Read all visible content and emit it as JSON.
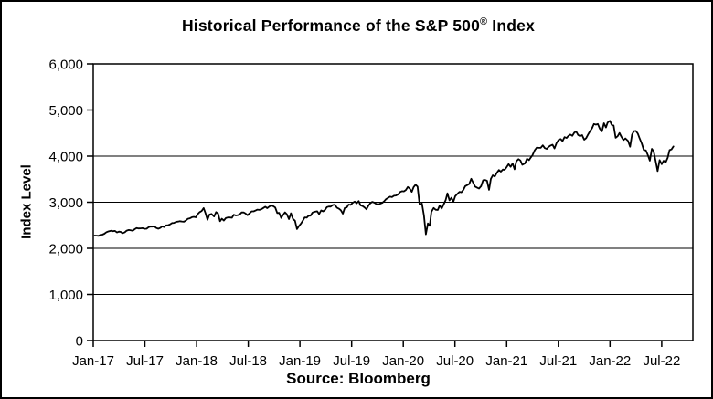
{
  "header": {
    "title_main": "Historical Performance of the S&P 500",
    "title_reg": "®",
    "title_tail": " Index"
  },
  "footer": {
    "source": "Source: Bloomberg"
  },
  "chart_data": {
    "type": "line",
    "title": "Historical Performance of the S&P 500® Index",
    "ylabel": "Index Level",
    "xlabel": "",
    "source": "Source: Bloomberg",
    "series_name": "S&P 500 Index Level",
    "line_color": "#000000",
    "grid": "horizontal-only",
    "legend": "none",
    "ylim": [
      0,
      6000
    ],
    "ytick_step": 1000,
    "ytick_labels": [
      "0",
      "1,000",
      "2,000",
      "3,000",
      "4,000",
      "5,000",
      "6,000"
    ],
    "xtick_labels": [
      "Jan-17",
      "Jul-17",
      "Jan-18",
      "Jul-18",
      "Jan-19",
      "Jul-19",
      "Jan-20",
      "Jul-20",
      "Jan-21",
      "Jul-21",
      "Jan-22",
      "Jul-22"
    ],
    "xtick_interval_months": 6,
    "xlim": [
      "2017-01-01",
      "2022-10-20"
    ],
    "points": [
      [
        "2017-01-06",
        2277
      ],
      [
        "2017-01-13",
        2275
      ],
      [
        "2017-01-20",
        2271
      ],
      [
        "2017-01-27",
        2295
      ],
      [
        "2017-02-03",
        2297
      ],
      [
        "2017-02-10",
        2316
      ],
      [
        "2017-02-17",
        2351
      ],
      [
        "2017-02-24",
        2367
      ],
      [
        "2017-03-03",
        2383
      ],
      [
        "2017-03-10",
        2373
      ],
      [
        "2017-03-17",
        2378
      ],
      [
        "2017-03-24",
        2344
      ],
      [
        "2017-03-31",
        2363
      ],
      [
        "2017-04-07",
        2356
      ],
      [
        "2017-04-13",
        2329
      ],
      [
        "2017-04-21",
        2349
      ],
      [
        "2017-04-28",
        2384
      ],
      [
        "2017-05-05",
        2399
      ],
      [
        "2017-05-12",
        2391
      ],
      [
        "2017-05-19",
        2382
      ],
      [
        "2017-05-26",
        2416
      ],
      [
        "2017-06-02",
        2439
      ],
      [
        "2017-06-09",
        2432
      ],
      [
        "2017-06-16",
        2433
      ],
      [
        "2017-06-23",
        2438
      ],
      [
        "2017-06-30",
        2423
      ],
      [
        "2017-07-07",
        2425
      ],
      [
        "2017-07-14",
        2459
      ],
      [
        "2017-07-21",
        2473
      ],
      [
        "2017-07-28",
        2472
      ],
      [
        "2017-08-04",
        2477
      ],
      [
        "2017-08-11",
        2441
      ],
      [
        "2017-08-18",
        2426
      ],
      [
        "2017-08-25",
        2443
      ],
      [
        "2017-09-01",
        2477
      ],
      [
        "2017-09-08",
        2461
      ],
      [
        "2017-09-15",
        2500
      ],
      [
        "2017-09-22",
        2502
      ],
      [
        "2017-09-29",
        2519
      ],
      [
        "2017-10-06",
        2549
      ],
      [
        "2017-10-13",
        2553
      ],
      [
        "2017-10-20",
        2575
      ],
      [
        "2017-10-27",
        2581
      ],
      [
        "2017-11-03",
        2588
      ],
      [
        "2017-11-10",
        2582
      ],
      [
        "2017-11-17",
        2579
      ],
      [
        "2017-11-24",
        2602
      ],
      [
        "2017-12-01",
        2642
      ],
      [
        "2017-12-08",
        2652
      ],
      [
        "2017-12-15",
        2676
      ],
      [
        "2017-12-22",
        2683
      ],
      [
        "2017-12-29",
        2674
      ],
      [
        "2018-01-05",
        2743
      ],
      [
        "2018-01-12",
        2786
      ],
      [
        "2018-01-19",
        2810
      ],
      [
        "2018-01-26",
        2873
      ],
      [
        "2018-02-02",
        2762
      ],
      [
        "2018-02-09",
        2620
      ],
      [
        "2018-02-16",
        2732
      ],
      [
        "2018-02-23",
        2747
      ],
      [
        "2018-03-02",
        2691
      ],
      [
        "2018-03-09",
        2787
      ],
      [
        "2018-03-16",
        2752
      ],
      [
        "2018-03-23",
        2588
      ],
      [
        "2018-03-29",
        2641
      ],
      [
        "2018-04-06",
        2604
      ],
      [
        "2018-04-13",
        2656
      ],
      [
        "2018-04-20",
        2670
      ],
      [
        "2018-04-27",
        2670
      ],
      [
        "2018-05-04",
        2663
      ],
      [
        "2018-05-11",
        2728
      ],
      [
        "2018-05-18",
        2713
      ],
      [
        "2018-05-25",
        2721
      ],
      [
        "2018-06-01",
        2735
      ],
      [
        "2018-06-08",
        2779
      ],
      [
        "2018-06-15",
        2780
      ],
      [
        "2018-06-22",
        2755
      ],
      [
        "2018-06-29",
        2718
      ],
      [
        "2018-07-06",
        2760
      ],
      [
        "2018-07-13",
        2801
      ],
      [
        "2018-07-20",
        2802
      ],
      [
        "2018-07-27",
        2819
      ],
      [
        "2018-08-03",
        2840
      ],
      [
        "2018-08-10",
        2833
      ],
      [
        "2018-08-17",
        2850
      ],
      [
        "2018-08-24",
        2875
      ],
      [
        "2018-08-31",
        2902
      ],
      [
        "2018-09-07",
        2872
      ],
      [
        "2018-09-14",
        2905
      ],
      [
        "2018-09-21",
        2930
      ],
      [
        "2018-09-28",
        2914
      ],
      [
        "2018-10-05",
        2886
      ],
      [
        "2018-10-12",
        2767
      ],
      [
        "2018-10-19",
        2768
      ],
      [
        "2018-10-26",
        2659
      ],
      [
        "2018-11-02",
        2723
      ],
      [
        "2018-11-09",
        2781
      ],
      [
        "2018-11-16",
        2736
      ],
      [
        "2018-11-23",
        2633
      ],
      [
        "2018-11-30",
        2760
      ],
      [
        "2018-12-07",
        2633
      ],
      [
        "2018-12-14",
        2600
      ],
      [
        "2018-12-21",
        2417
      ],
      [
        "2018-12-28",
        2486
      ],
      [
        "2019-01-04",
        2532
      ],
      [
        "2019-01-11",
        2596
      ],
      [
        "2019-01-18",
        2671
      ],
      [
        "2019-01-25",
        2665
      ],
      [
        "2019-02-01",
        2707
      ],
      [
        "2019-02-08",
        2708
      ],
      [
        "2019-02-15",
        2776
      ],
      [
        "2019-02-22",
        2793
      ],
      [
        "2019-03-01",
        2803
      ],
      [
        "2019-03-08",
        2743
      ],
      [
        "2019-03-15",
        2822
      ],
      [
        "2019-03-22",
        2801
      ],
      [
        "2019-03-29",
        2834
      ],
      [
        "2019-04-05",
        2893
      ],
      [
        "2019-04-12",
        2907
      ],
      [
        "2019-04-18",
        2905
      ],
      [
        "2019-04-26",
        2940
      ],
      [
        "2019-05-03",
        2946
      ],
      [
        "2019-05-10",
        2881
      ],
      [
        "2019-05-17",
        2860
      ],
      [
        "2019-05-24",
        2826
      ],
      [
        "2019-05-31",
        2752
      ],
      [
        "2019-06-07",
        2873
      ],
      [
        "2019-06-14",
        2887
      ],
      [
        "2019-06-21",
        2950
      ],
      [
        "2019-06-28",
        2942
      ],
      [
        "2019-07-05",
        2990
      ],
      [
        "2019-07-12",
        3014
      ],
      [
        "2019-07-19",
        2977
      ],
      [
        "2019-07-26",
        3026
      ],
      [
        "2019-08-02",
        2932
      ],
      [
        "2019-08-09",
        2919
      ],
      [
        "2019-08-16",
        2889
      ],
      [
        "2019-08-23",
        2847
      ],
      [
        "2019-08-30",
        2926
      ],
      [
        "2019-09-06",
        2979
      ],
      [
        "2019-09-13",
        3007
      ],
      [
        "2019-09-20",
        2992
      ],
      [
        "2019-09-27",
        2962
      ],
      [
        "2019-10-04",
        2952
      ],
      [
        "2019-10-11",
        2970
      ],
      [
        "2019-10-18",
        2986
      ],
      [
        "2019-10-25",
        3023
      ],
      [
        "2019-11-01",
        3067
      ],
      [
        "2019-11-08",
        3093
      ],
      [
        "2019-11-15",
        3120
      ],
      [
        "2019-11-22",
        3110
      ],
      [
        "2019-11-29",
        3141
      ],
      [
        "2019-12-06",
        3146
      ],
      [
        "2019-12-13",
        3169
      ],
      [
        "2019-12-20",
        3221
      ],
      [
        "2019-12-27",
        3240
      ],
      [
        "2020-01-03",
        3235
      ],
      [
        "2020-01-10",
        3265
      ],
      [
        "2020-01-17",
        3330
      ],
      [
        "2020-01-24",
        3295
      ],
      [
        "2020-01-31",
        3226
      ],
      [
        "2020-02-07",
        3328
      ],
      [
        "2020-02-14",
        3380
      ],
      [
        "2020-02-21",
        3338
      ],
      [
        "2020-02-28",
        2954
      ],
      [
        "2020-03-06",
        2972
      ],
      [
        "2020-03-13",
        2711
      ],
      [
        "2020-03-20",
        2305
      ],
      [
        "2020-03-27",
        2541
      ],
      [
        "2020-04-03",
        2489
      ],
      [
        "2020-04-09",
        2790
      ],
      [
        "2020-04-17",
        2875
      ],
      [
        "2020-04-24",
        2837
      ],
      [
        "2020-05-01",
        2831
      ],
      [
        "2020-05-08",
        2930
      ],
      [
        "2020-05-15",
        2864
      ],
      [
        "2020-05-22",
        2955
      ],
      [
        "2020-05-29",
        3044
      ],
      [
        "2020-06-05",
        3194
      ],
      [
        "2020-06-12",
        3041
      ],
      [
        "2020-06-19",
        3098
      ],
      [
        "2020-06-26",
        3009
      ],
      [
        "2020-07-02",
        3130
      ],
      [
        "2020-07-10",
        3185
      ],
      [
        "2020-07-17",
        3225
      ],
      [
        "2020-07-24",
        3216
      ],
      [
        "2020-07-31",
        3271
      ],
      [
        "2020-08-07",
        3351
      ],
      [
        "2020-08-14",
        3373
      ],
      [
        "2020-08-21",
        3397
      ],
      [
        "2020-08-28",
        3508
      ],
      [
        "2020-09-04",
        3427
      ],
      [
        "2020-09-11",
        3341
      ],
      [
        "2020-09-18",
        3319
      ],
      [
        "2020-09-25",
        3298
      ],
      [
        "2020-10-02",
        3348
      ],
      [
        "2020-10-09",
        3477
      ],
      [
        "2020-10-16",
        3484
      ],
      [
        "2020-10-23",
        3465
      ],
      [
        "2020-10-30",
        3270
      ],
      [
        "2020-11-06",
        3509
      ],
      [
        "2020-11-13",
        3585
      ],
      [
        "2020-11-20",
        3558
      ],
      [
        "2020-11-27",
        3638
      ],
      [
        "2020-12-04",
        3699
      ],
      [
        "2020-12-11",
        3663
      ],
      [
        "2020-12-18",
        3709
      ],
      [
        "2020-12-24",
        3703
      ],
      [
        "2020-12-31",
        3756
      ],
      [
        "2021-01-08",
        3825
      ],
      [
        "2021-01-15",
        3768
      ],
      [
        "2021-01-22",
        3841
      ],
      [
        "2021-01-29",
        3714
      ],
      [
        "2021-02-05",
        3887
      ],
      [
        "2021-02-12",
        3935
      ],
      [
        "2021-02-19",
        3907
      ],
      [
        "2021-02-26",
        3811
      ],
      [
        "2021-03-05",
        3842
      ],
      [
        "2021-03-12",
        3943
      ],
      [
        "2021-03-19",
        3913
      ],
      [
        "2021-03-26",
        3975
      ],
      [
        "2021-04-01",
        4020
      ],
      [
        "2021-04-09",
        4129
      ],
      [
        "2021-04-16",
        4185
      ],
      [
        "2021-04-23",
        4180
      ],
      [
        "2021-04-30",
        4181
      ],
      [
        "2021-05-07",
        4233
      ],
      [
        "2021-05-14",
        4174
      ],
      [
        "2021-05-21",
        4156
      ],
      [
        "2021-05-28",
        4204
      ],
      [
        "2021-06-04",
        4230
      ],
      [
        "2021-06-11",
        4247
      ],
      [
        "2021-06-18",
        4166
      ],
      [
        "2021-06-25",
        4281
      ],
      [
        "2021-07-02",
        4352
      ],
      [
        "2021-07-09",
        4370
      ],
      [
        "2021-07-16",
        4327
      ],
      [
        "2021-07-23",
        4412
      ],
      [
        "2021-07-30",
        4395
      ],
      [
        "2021-08-06",
        4437
      ],
      [
        "2021-08-13",
        4468
      ],
      [
        "2021-08-20",
        4442
      ],
      [
        "2021-08-27",
        4509
      ],
      [
        "2021-09-03",
        4535
      ],
      [
        "2021-09-10",
        4459
      ],
      [
        "2021-09-17",
        4433
      ],
      [
        "2021-09-24",
        4455
      ],
      [
        "2021-10-01",
        4357
      ],
      [
        "2021-10-08",
        4391
      ],
      [
        "2021-10-15",
        4471
      ],
      [
        "2021-10-22",
        4545
      ],
      [
        "2021-10-29",
        4605
      ],
      [
        "2021-11-05",
        4698
      ],
      [
        "2021-11-12",
        4683
      ],
      [
        "2021-11-19",
        4698
      ],
      [
        "2021-11-26",
        4595
      ],
      [
        "2021-12-03",
        4538
      ],
      [
        "2021-12-10",
        4712
      ],
      [
        "2021-12-17",
        4621
      ],
      [
        "2021-12-23",
        4726
      ],
      [
        "2021-12-31",
        4766
      ],
      [
        "2022-01-07",
        4677
      ],
      [
        "2022-01-14",
        4663
      ],
      [
        "2022-01-21",
        4398
      ],
      [
        "2022-01-28",
        4432
      ],
      [
        "2022-02-04",
        4501
      ],
      [
        "2022-02-11",
        4419
      ],
      [
        "2022-02-18",
        4349
      ],
      [
        "2022-02-25",
        4385
      ],
      [
        "2022-03-04",
        4329
      ],
      [
        "2022-03-11",
        4204
      ],
      [
        "2022-03-18",
        4463
      ],
      [
        "2022-03-25",
        4543
      ],
      [
        "2022-04-01",
        4546
      ],
      [
        "2022-04-08",
        4488
      ],
      [
        "2022-04-14",
        4393
      ],
      [
        "2022-04-22",
        4272
      ],
      [
        "2022-04-29",
        4132
      ],
      [
        "2022-05-06",
        4123
      ],
      [
        "2022-05-13",
        4024
      ],
      [
        "2022-05-20",
        3901
      ],
      [
        "2022-05-27",
        4158
      ],
      [
        "2022-06-03",
        4109
      ],
      [
        "2022-06-10",
        3901
      ],
      [
        "2022-06-17",
        3675
      ],
      [
        "2022-06-24",
        3912
      ],
      [
        "2022-07-01",
        3825
      ],
      [
        "2022-07-08",
        3899
      ],
      [
        "2022-07-15",
        3863
      ],
      [
        "2022-07-22",
        3962
      ],
      [
        "2022-07-29",
        4130
      ],
      [
        "2022-08-05",
        4145
      ],
      [
        "2022-08-12",
        4210
      ]
    ]
  }
}
